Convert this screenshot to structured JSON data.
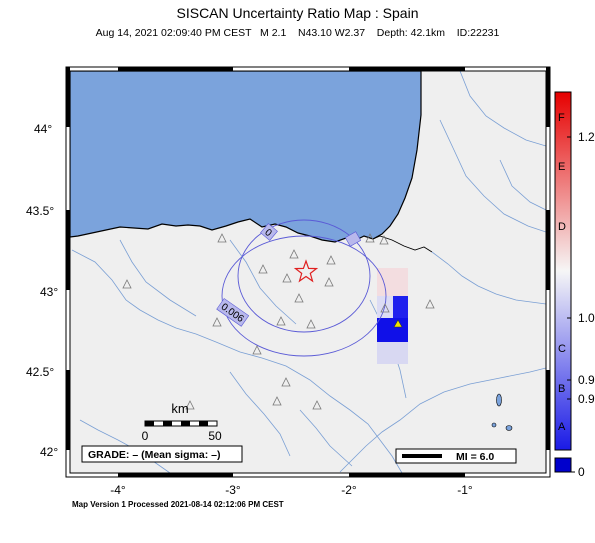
{
  "header": {
    "title": "SISCAN Uncertainty Ratio Map : Spain",
    "subtitle": "Aug 14, 2021 02:09:40 PM CEST   M 2.1    N43.10 W2.37    Depth: 42.1km    ID:22231"
  },
  "map": {
    "lon_labels": [
      "-4°",
      "-3°",
      "-2°",
      "-1°"
    ],
    "lat_labels": [
      "44°",
      "43.5°",
      "43°",
      "42.5°",
      "42°"
    ],
    "contours": [
      "0.006",
      "0",
      "0"
    ],
    "scalebar": {
      "unit": "km",
      "start": "0",
      "end": "50"
    },
    "grade_box": "GRADE: – (Mean sigma: –)",
    "mi_legend": "MI = 6.0",
    "epicenter": {
      "lat": 43.1,
      "lon": -2.37
    }
  },
  "colorbar": {
    "letters": [
      "F",
      "E",
      "D",
      "C",
      "B",
      "A"
    ],
    "values": [
      "1.2",
      "1.0",
      "0.9",
      "0.9",
      "0"
    ],
    "colors": {
      "top": "#e60000",
      "mid": "#f5f5f5",
      "bottom": "#1a1ae6",
      "floor": "#0000cc"
    }
  },
  "footer": {
    "text": "Map Version 1 Processed 2021-08-14 02:12:06 PM CEST"
  }
}
